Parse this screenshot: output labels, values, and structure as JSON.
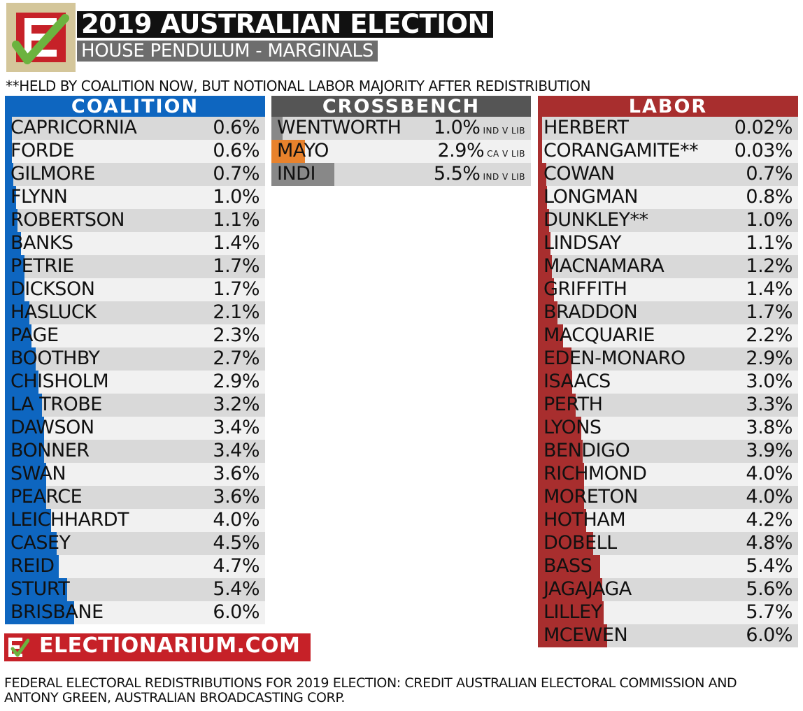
{
  "header": {
    "title": "2019 AUSTRALIAN ELECTION",
    "subtitle": "HOUSE PENDULUM - MARGINALS",
    "note": "**HELD BY COALITION NOW, BUT NOTIONAL LABOR MAJORITY AFTER REDISTRIBUTION"
  },
  "chart_data": {
    "type": "bar",
    "x_max_percent": 6.0,
    "colors": {
      "coalition": "#0e66c0",
      "crossbench": "#555555",
      "mayo": "#e8822c",
      "cross_bar": "#888888",
      "labor": "#a82e2e"
    },
    "groups": [
      {
        "name": "COALITION",
        "seats": [
          {
            "seat": "CAPRICORNIA",
            "margin": 0.6,
            "label": "0.6%"
          },
          {
            "seat": "FORDE",
            "margin": 0.6,
            "label": "0.6%"
          },
          {
            "seat": "GILMORE",
            "margin": 0.7,
            "label": "0.7%"
          },
          {
            "seat": "FLYNN",
            "margin": 1.0,
            "label": "1.0%"
          },
          {
            "seat": "ROBERTSON",
            "margin": 1.1,
            "label": "1.1%"
          },
          {
            "seat": "BANKS",
            "margin": 1.4,
            "label": "1.4%"
          },
          {
            "seat": "PETRIE",
            "margin": 1.7,
            "label": "1.7%"
          },
          {
            "seat": "DICKSON",
            "margin": 1.7,
            "label": "1.7%"
          },
          {
            "seat": "HASLUCK",
            "margin": 2.1,
            "label": "2.1%"
          },
          {
            "seat": "PAGE",
            "margin": 2.3,
            "label": "2.3%"
          },
          {
            "seat": "BOOTHBY",
            "margin": 2.7,
            "label": "2.7%"
          },
          {
            "seat": "CHISHOLM",
            "margin": 2.9,
            "label": "2.9%"
          },
          {
            "seat": "LA TROBE",
            "margin": 3.2,
            "label": "3.2%"
          },
          {
            "seat": "DAWSON",
            "margin": 3.4,
            "label": "3.4%"
          },
          {
            "seat": "BONNER",
            "margin": 3.4,
            "label": "3.4%"
          },
          {
            "seat": "SWAN",
            "margin": 3.6,
            "label": "3.6%"
          },
          {
            "seat": "PEARCE",
            "margin": 3.6,
            "label": "3.6%"
          },
          {
            "seat": "LEICHHARDT",
            "margin": 4.0,
            "label": "4.0%"
          },
          {
            "seat": "CASEY",
            "margin": 4.5,
            "label": "4.5%"
          },
          {
            "seat": "REID",
            "margin": 4.7,
            "label": "4.7%"
          },
          {
            "seat": "STURT",
            "margin": 5.4,
            "label": "5.4%"
          },
          {
            "seat": "BRISBANE",
            "margin": 6.0,
            "label": "6.0%"
          }
        ]
      },
      {
        "name": "CROSSBENCH",
        "seats": [
          {
            "seat": "WENTWORTH",
            "margin": 1.0,
            "label": "1.0%",
            "contest": "IND V LIB",
            "color": "#888888"
          },
          {
            "seat": "MAYO",
            "margin": 2.9,
            "label": "2.9%",
            "contest": "CA V LIB",
            "color": "#e8822c"
          },
          {
            "seat": "INDI",
            "margin": 5.5,
            "label": "5.5%",
            "contest": "IND V LIB",
            "color": "#888888"
          }
        ]
      },
      {
        "name": "LABOR",
        "seats": [
          {
            "seat": "HERBERT",
            "margin": 0.02,
            "label": "0.02%"
          },
          {
            "seat": "CORANGAMITE**",
            "margin": 0.03,
            "label": "0.03%"
          },
          {
            "seat": "COWAN",
            "margin": 0.7,
            "label": "0.7%"
          },
          {
            "seat": "LONGMAN",
            "margin": 0.8,
            "label": "0.8%"
          },
          {
            "seat": "DUNKLEY**",
            "margin": 1.0,
            "label": "1.0%"
          },
          {
            "seat": "LINDSAY",
            "margin": 1.1,
            "label": "1.1%"
          },
          {
            "seat": "MACNAMARA",
            "margin": 1.2,
            "label": "1.2%"
          },
          {
            "seat": "GRIFFITH",
            "margin": 1.4,
            "label": "1.4%"
          },
          {
            "seat": "BRADDON",
            "margin": 1.7,
            "label": "1.7%"
          },
          {
            "seat": "MACQUARIE",
            "margin": 2.2,
            "label": "2.2%"
          },
          {
            "seat": "EDEN-MONARO",
            "margin": 2.9,
            "label": "2.9%"
          },
          {
            "seat": "ISAACS",
            "margin": 3.0,
            "label": "3.0%"
          },
          {
            "seat": "PERTH",
            "margin": 3.3,
            "label": "3.3%"
          },
          {
            "seat": "LYONS",
            "margin": 3.8,
            "label": "3.8%"
          },
          {
            "seat": "BENDIGO",
            "margin": 3.9,
            "label": "3.9%"
          },
          {
            "seat": "RICHMOND",
            "margin": 4.0,
            "label": "4.0%"
          },
          {
            "seat": "MORETON",
            "margin": 4.0,
            "label": "4.0%"
          },
          {
            "seat": "HOTHAM",
            "margin": 4.2,
            "label": "4.2%"
          },
          {
            "seat": "DOBELL",
            "margin": 4.8,
            "label": "4.8%"
          },
          {
            "seat": "BASS",
            "margin": 5.4,
            "label": "5.4%"
          },
          {
            "seat": "JAGAJAGA",
            "margin": 5.6,
            "label": "5.6%"
          },
          {
            "seat": "LILLEY",
            "margin": 5.7,
            "label": "5.7%"
          },
          {
            "seat": "MCEWEN",
            "margin": 6.0,
            "label": "6.0%"
          }
        ]
      }
    ]
  },
  "footer": {
    "brand": "ELECTIONARIUM.COM",
    "credit": "FEDERAL ELECTORAL REDISTRIBUTIONS FOR 2019 ELECTION: CREDIT AUSTRALIAN ELECTORAL COMMISSION AND ANTONY GREEN, AUSTRALIAN BROADCASTING CORP."
  }
}
